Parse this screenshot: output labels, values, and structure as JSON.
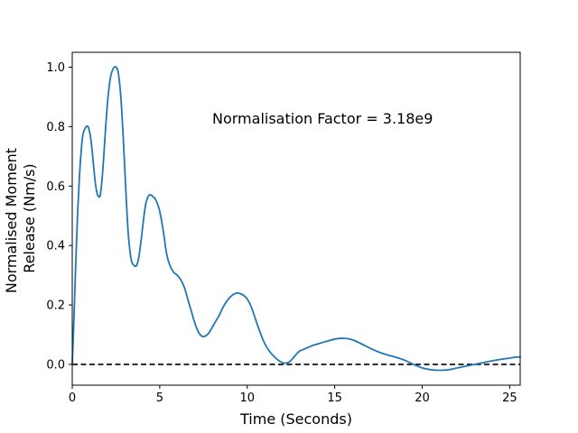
{
  "chart_data": {
    "type": "line",
    "title": "",
    "xlabel": "Time (Seconds)",
    "ylabel_lines": [
      "Normalised Moment",
      "Release (Nm/s)"
    ],
    "xlim": [
      0,
      25.6
    ],
    "ylim": [
      -0.07,
      1.05
    ],
    "xticks": [
      0,
      5,
      10,
      15,
      20,
      25
    ],
    "xtick_labels": [
      "0",
      "5",
      "10",
      "15",
      "20",
      "25"
    ],
    "yticks": [
      0.0,
      0.2,
      0.4,
      0.6,
      0.8,
      1.0
    ],
    "ytick_labels": [
      "0.0",
      "0.2",
      "0.4",
      "0.6",
      "0.8",
      "1.0"
    ],
    "grid": false,
    "annotation": {
      "text": "Normalisation Factor = 3.18e9",
      "x": 8.0,
      "y": 0.81
    },
    "reference_line": {
      "y": 0.0,
      "style": "dashed",
      "color": "#000000"
    },
    "series": [
      {
        "color": "#1f77b4",
        "x": [
          0.0,
          0.1,
          0.2,
          0.3,
          0.4,
          0.5,
          0.6,
          0.7,
          0.8,
          0.9,
          1.0,
          1.1,
          1.2,
          1.3,
          1.4,
          1.5,
          1.6,
          1.7,
          1.8,
          1.9,
          2.0,
          2.1,
          2.2,
          2.3,
          2.4,
          2.5,
          2.6,
          2.7,
          2.8,
          2.9,
          3.0,
          3.1,
          3.2,
          3.3,
          3.4,
          3.5,
          3.6,
          3.7,
          3.8,
          3.9,
          4.0,
          4.1,
          4.2,
          4.3,
          4.4,
          4.5,
          4.6,
          4.7,
          4.8,
          4.9,
          5.0,
          5.2,
          5.4,
          5.6,
          5.8,
          6.0,
          6.2,
          6.4,
          6.6,
          6.8,
          7.0,
          7.2,
          7.4,
          7.6,
          7.8,
          8.0,
          8.2,
          8.4,
          8.6,
          8.8,
          9.0,
          9.2,
          9.4,
          9.6,
          9.8,
          10.0,
          10.2,
          10.4,
          10.6,
          10.8,
          11.0,
          11.2,
          11.4,
          11.6,
          11.8,
          12.0,
          12.2,
          12.4,
          12.6,
          12.8,
          13.0,
          13.2,
          13.4,
          13.6,
          13.8,
          14.0,
          14.5,
          15.0,
          15.5,
          16.0,
          16.5,
          17.0,
          17.5,
          18.0,
          18.5,
          19.0,
          19.5,
          20.0,
          20.5,
          21.0,
          21.5,
          22.0,
          22.5,
          23.0,
          23.5,
          24.0,
          24.5,
          25.0,
          25.3,
          25.6
        ],
        "y": [
          0.0,
          0.16,
          0.34,
          0.5,
          0.62,
          0.71,
          0.77,
          0.79,
          0.8,
          0.8,
          0.78,
          0.74,
          0.68,
          0.62,
          0.58,
          0.565,
          0.57,
          0.62,
          0.7,
          0.79,
          0.87,
          0.93,
          0.97,
          0.99,
          1.0,
          1.0,
          0.99,
          0.95,
          0.88,
          0.78,
          0.66,
          0.54,
          0.44,
          0.38,
          0.345,
          0.335,
          0.33,
          0.335,
          0.36,
          0.4,
          0.45,
          0.5,
          0.54,
          0.56,
          0.57,
          0.57,
          0.565,
          0.56,
          0.55,
          0.535,
          0.515,
          0.45,
          0.37,
          0.33,
          0.31,
          0.3,
          0.285,
          0.26,
          0.22,
          0.18,
          0.14,
          0.11,
          0.095,
          0.095,
          0.105,
          0.125,
          0.145,
          0.165,
          0.19,
          0.21,
          0.225,
          0.235,
          0.24,
          0.238,
          0.232,
          0.22,
          0.198,
          0.165,
          0.13,
          0.098,
          0.07,
          0.05,
          0.035,
          0.023,
          0.013,
          0.006,
          0.004,
          0.008,
          0.02,
          0.034,
          0.045,
          0.05,
          0.055,
          0.06,
          0.065,
          0.068,
          0.077,
          0.085,
          0.088,
          0.083,
          0.07,
          0.055,
          0.042,
          0.032,
          0.024,
          0.014,
          0.0,
          -0.012,
          -0.018,
          -0.02,
          -0.018,
          -0.012,
          -0.006,
          0.0,
          0.006,
          0.012,
          0.017,
          0.021,
          0.024,
          0.025
        ]
      }
    ]
  }
}
